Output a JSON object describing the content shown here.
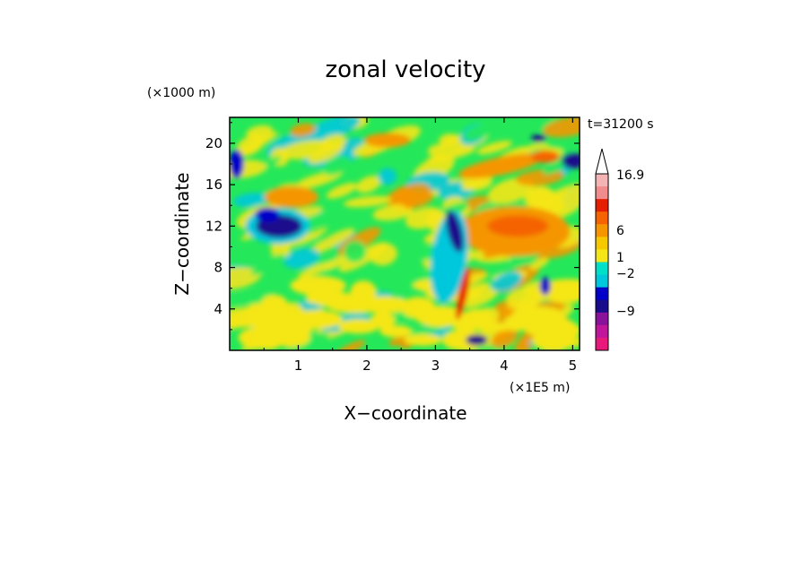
{
  "chart_data": {
    "type": "heatmap",
    "title": "zonal velocity",
    "xlabel": "X−coordinate",
    "ylabel": "Z−coordinate",
    "x_unit": "(×1E5 m)",
    "y_unit": "(×1000 m)",
    "time_label": "t=31200 s",
    "xlim": [
      0,
      5.1
    ],
    "ylim": [
      0,
      22.5
    ],
    "x_ticks": [
      "1",
      "2",
      "3",
      "4",
      "5"
    ],
    "x_tick_values": [
      1,
      2,
      3,
      4,
      5
    ],
    "y_ticks": [
      "4",
      "8",
      "12",
      "16",
      "20"
    ],
    "y_tick_values": [
      4,
      8,
      12,
      16,
      20
    ],
    "colorbar": {
      "labels": [
        "16.9",
        "6",
        "1",
        "−2",
        "−9"
      ],
      "max_value": 16.9,
      "colors": [
        "#e8197a",
        "#c0169c",
        "#8a1199",
        "#1a0a8c",
        "#0000c8",
        "#00c8dc",
        "#00e0c8",
        "#f5e619",
        "#f5c800",
        "#f59600",
        "#f56400",
        "#e61e00",
        "#f08c8c",
        "#f5b4b4"
      ]
    },
    "features": [
      {
        "x": 0.75,
        "z": 12,
        "value": "negative"
      },
      {
        "x": 3.3,
        "z": 9,
        "value": "negative"
      },
      {
        "x": 3.4,
        "z": 6,
        "value": "positive"
      },
      {
        "x": 4.2,
        "z": 11.5,
        "value": "positive"
      },
      {
        "x": 4.0,
        "z": 17.5,
        "value": "positive"
      }
    ]
  }
}
